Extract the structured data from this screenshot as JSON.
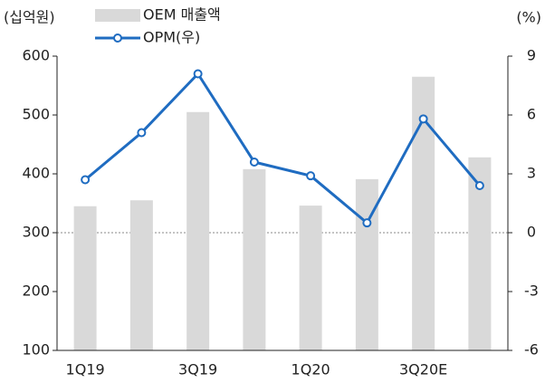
{
  "chart_data": {
    "type": "bar_line",
    "ylabel": "(십억원)",
    "y2label": "(%)",
    "categories": [
      "1Q19",
      null,
      "3Q19",
      null,
      "1Q20",
      null,
      "3Q20E",
      null
    ],
    "series": [
      {
        "name": "OEM 매출액",
        "type": "bar",
        "color": "#d9d9d9",
        "values": [
          345,
          355,
          505,
          408,
          346,
          391,
          565,
          428
        ]
      },
      {
        "name": "OPM(우)",
        "type": "line",
        "axis": "y2",
        "color": "#1f6cc1",
        "values": [
          2.7,
          5.1,
          8.1,
          3.6,
          2.9,
          0.5,
          5.8,
          2.4
        ]
      }
    ],
    "ylim": [
      100,
      600
    ],
    "yticks": [
      100,
      200,
      300,
      400,
      500,
      600
    ],
    "y2lim": [
      -6,
      9
    ],
    "y2ticks": [
      -6,
      -3,
      0,
      3,
      6,
      9
    ],
    "zero_line": true
  }
}
